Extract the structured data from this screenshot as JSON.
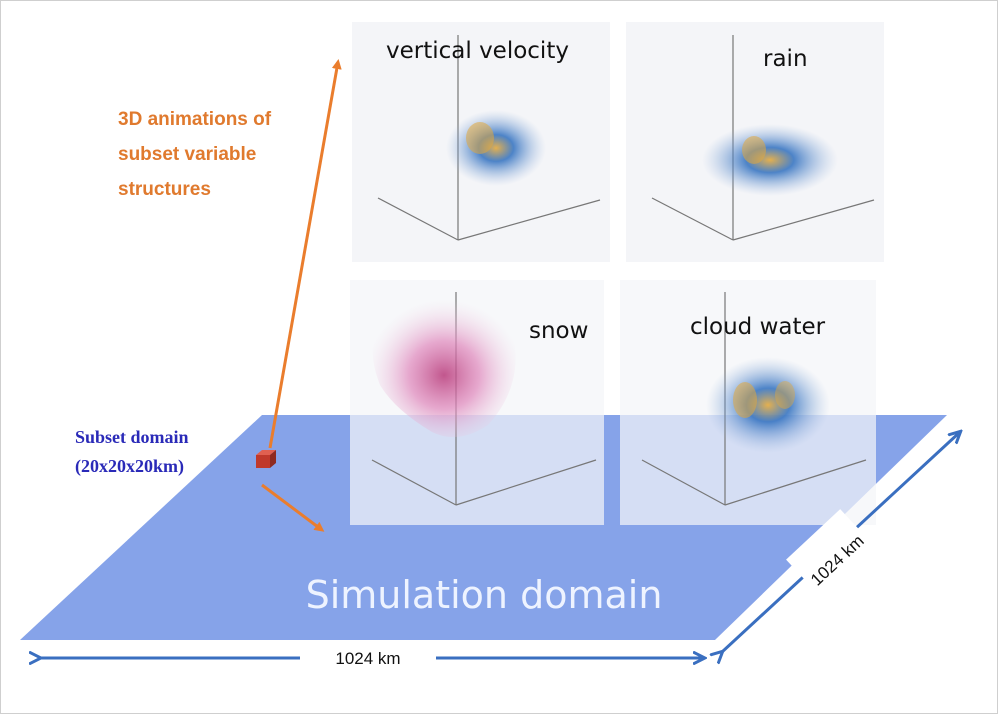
{
  "panels": [
    {
      "title": "vertical velocity",
      "colors": [
        "#2f6fbf",
        "#e2a83c"
      ]
    },
    {
      "title": "rain",
      "colors": [
        "#2f5fb8",
        "#e2a83c"
      ]
    },
    {
      "title": "snow",
      "colors": [
        "#d86aa8",
        "#b03570"
      ]
    },
    {
      "title": "cloud water",
      "colors": [
        "#3d7bc6",
        "#e2a83c"
      ]
    }
  ],
  "animation_caption": [
    "3D animations of",
    "subset variable",
    "structures"
  ],
  "subset_caption": [
    "Subset domain",
    "(20x20x20km)"
  ],
  "simulation_label": "Simulation domain",
  "width_label": "1024 km",
  "depth_label": "1024 km",
  "colors": {
    "plane": "#7f9ee8",
    "arrow_orange": "#ea7d2d",
    "arrow_blue": "#3a6fc0",
    "cube": "#c0392b"
  }
}
